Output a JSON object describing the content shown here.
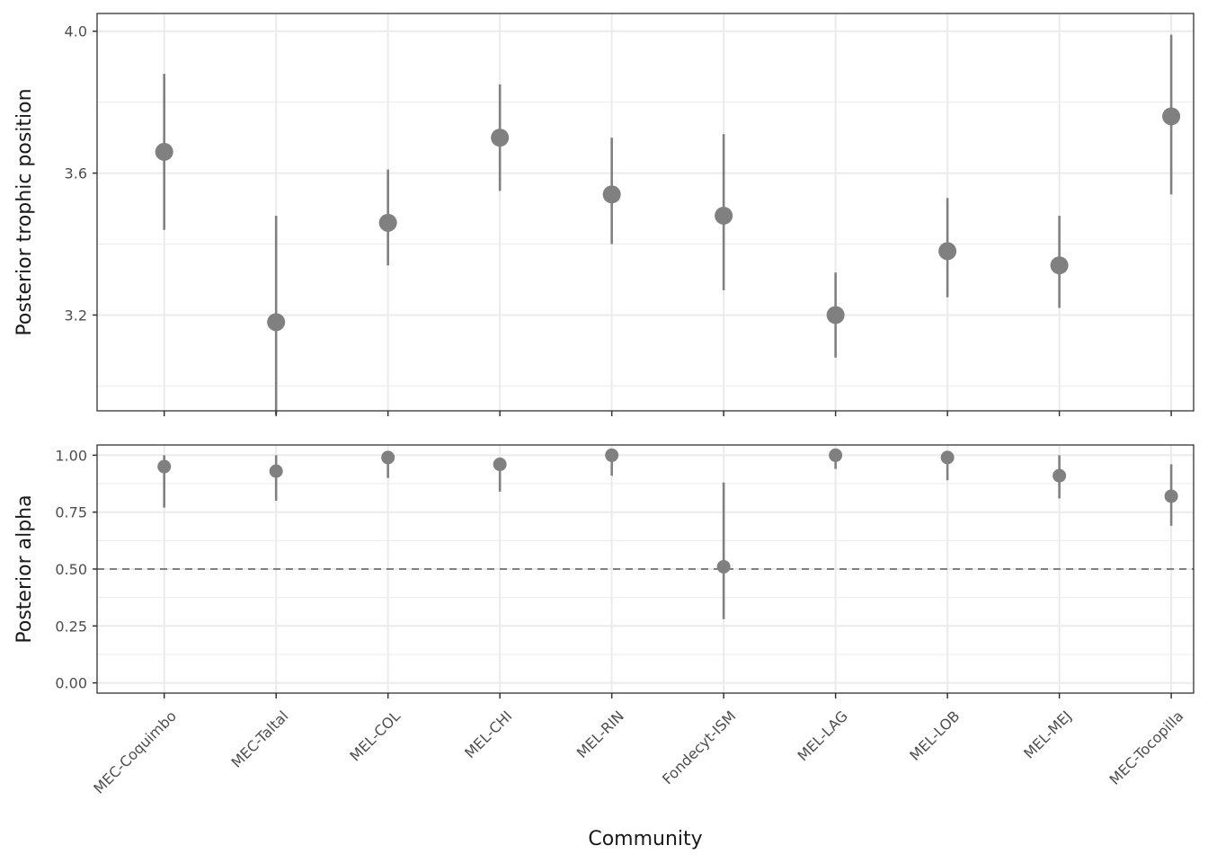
{
  "chart_data": [
    {
      "type": "scatter",
      "panel": "top",
      "ylabel": "Posterior trophic position",
      "ylim": [
        2.93,
        4.05
      ],
      "yticks": [
        3.2,
        3.6,
        4.0
      ],
      "ytick_labels": [
        "3.2",
        "3.6",
        "4.0"
      ],
      "grid": true,
      "categories": [
        "MEC-Coquimbo",
        "MEC-Taltal",
        "MEL-COL",
        "MEL-CHI",
        "MEL-RIN",
        "Fondecyt-ISM",
        "MEL-LAG",
        "MEL-LOB",
        "MEL-MEJ",
        "MEC-Tocopilla"
      ],
      "values": [
        3.66,
        3.18,
        3.46,
        3.7,
        3.54,
        3.48,
        3.2,
        3.38,
        3.34,
        3.76
      ],
      "lower": [
        3.44,
        2.92,
        3.34,
        3.55,
        3.4,
        3.27,
        3.08,
        3.25,
        3.22,
        3.54
      ],
      "upper": [
        3.88,
        3.48,
        3.61,
        3.85,
        3.7,
        3.71,
        3.32,
        3.53,
        3.48,
        3.99
      ]
    },
    {
      "type": "scatter",
      "panel": "bottom",
      "ylabel": "Posterior alpha",
      "ylim": [
        -0.045,
        1.045
      ],
      "yticks": [
        0.0,
        0.25,
        0.5,
        0.75,
        1.0
      ],
      "ytick_labels": [
        "0.00",
        "0.25",
        "0.50",
        "0.75",
        "1.00"
      ],
      "reference_line": 0.5,
      "grid": true,
      "xlabel": "Community",
      "categories": [
        "MEC-Coquimbo",
        "MEC-Taltal",
        "MEL-COL",
        "MEL-CHI",
        "MEL-RIN",
        "Fondecyt-ISM",
        "MEL-LAG",
        "MEL-LOB",
        "MEL-MEJ",
        "MEC-Tocopilla"
      ],
      "values": [
        0.95,
        0.93,
        0.99,
        0.96,
        1.0,
        0.51,
        1.0,
        0.99,
        0.91,
        0.82
      ],
      "lower": [
        0.77,
        0.8,
        0.9,
        0.84,
        0.91,
        0.28,
        0.94,
        0.89,
        0.81,
        0.69
      ],
      "upper": [
        1.0,
        1.0,
        1.0,
        0.99,
        1.0,
        0.88,
        1.0,
        1.0,
        1.0,
        0.96
      ]
    }
  ],
  "colors": {
    "point": "#808080",
    "errorbar": "#808080",
    "grid": "#ebebeb",
    "panel_border": "#333333",
    "reference_line": "#808080"
  }
}
